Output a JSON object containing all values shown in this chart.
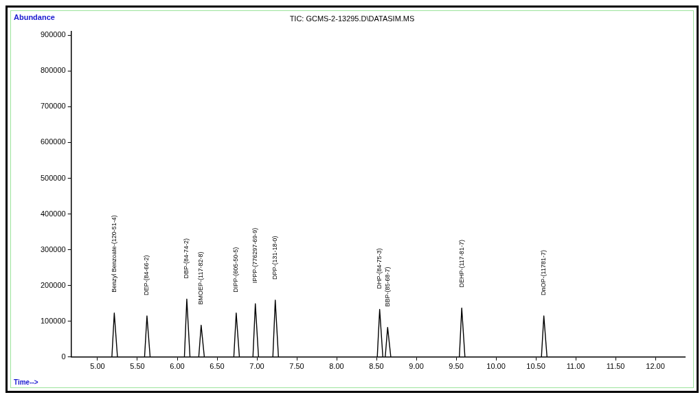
{
  "chart_data": {
    "type": "line",
    "title": "TIC: GCMS-2-13295.D\\DATASIM.MS",
    "xlabel": "Time-->",
    "ylabel": "Abundance",
    "x": [
      4.67,
      5.18,
      5.21,
      5.25,
      5.59,
      5.62,
      5.66,
      6.09,
      6.12,
      6.16,
      6.27,
      6.3,
      6.34,
      6.71,
      6.74,
      6.78,
      6.95,
      6.98,
      7.02,
      7.2,
      7.23,
      7.27,
      8.51,
      8.54,
      8.58,
      8.61,
      8.64,
      8.68,
      9.54,
      9.57,
      9.61,
      10.57,
      10.6,
      10.64,
      12.37
    ],
    "series": [
      {
        "color": "#000000",
        "values": [
          0,
          0,
          123000,
          0,
          0,
          115000,
          0,
          0,
          162000,
          0,
          0,
          89000,
          0,
          0,
          123000,
          0,
          0,
          149000,
          0,
          0,
          159000,
          0,
          0,
          133000,
          0,
          0,
          83000,
          0,
          0,
          137000,
          0,
          0,
          115000,
          0,
          0
        ]
      }
    ],
    "xlim": [
      4.67,
      12.37
    ],
    "ylim": [
      0,
      910000
    ],
    "xticks": [
      {
        "value": 5,
        "label": "5.00"
      },
      {
        "value": 5.5,
        "label": "5.50"
      },
      {
        "value": 6,
        "label": "6.00"
      },
      {
        "value": 6.5,
        "label": "6.50"
      },
      {
        "value": 7,
        "label": "7.00"
      },
      {
        "value": 7.5,
        "label": "7.50"
      },
      {
        "value": 8,
        "label": "8.00"
      },
      {
        "value": 8.5,
        "label": "8.50"
      },
      {
        "value": 9,
        "label": "9.00"
      },
      {
        "value": 9.5,
        "label": "9.50"
      },
      {
        "value": 10,
        "label": "10.00"
      },
      {
        "value": 10.5,
        "label": "10.50"
      },
      {
        "value": 11,
        "label": "11.00"
      },
      {
        "value": 11.5,
        "label": "11.50"
      },
      {
        "value": 12,
        "label": "12.00"
      }
    ],
    "yticks": [
      0,
      100000,
      200000,
      300000,
      400000,
      500000,
      600000,
      700000,
      800000,
      900000
    ],
    "grid": false,
    "legend": false,
    "marker": "none",
    "line_style": "solid",
    "annotations": [
      "Benzyl Benzoate-(120-51-4)",
      "DEP-(84-66-2)",
      "DBP-(84-74-2)",
      "BMOEP-(117-82-8)",
      "DIPP-(605-50-5)",
      "IPPP-(776297-69-9)",
      "DPP-(131-18-0)",
      "DHP-(84-75-3)",
      "BBP-(85-68-7)",
      "DEHP-(117-81-7)",
      "DnOP-(11781-7)"
    ]
  }
}
